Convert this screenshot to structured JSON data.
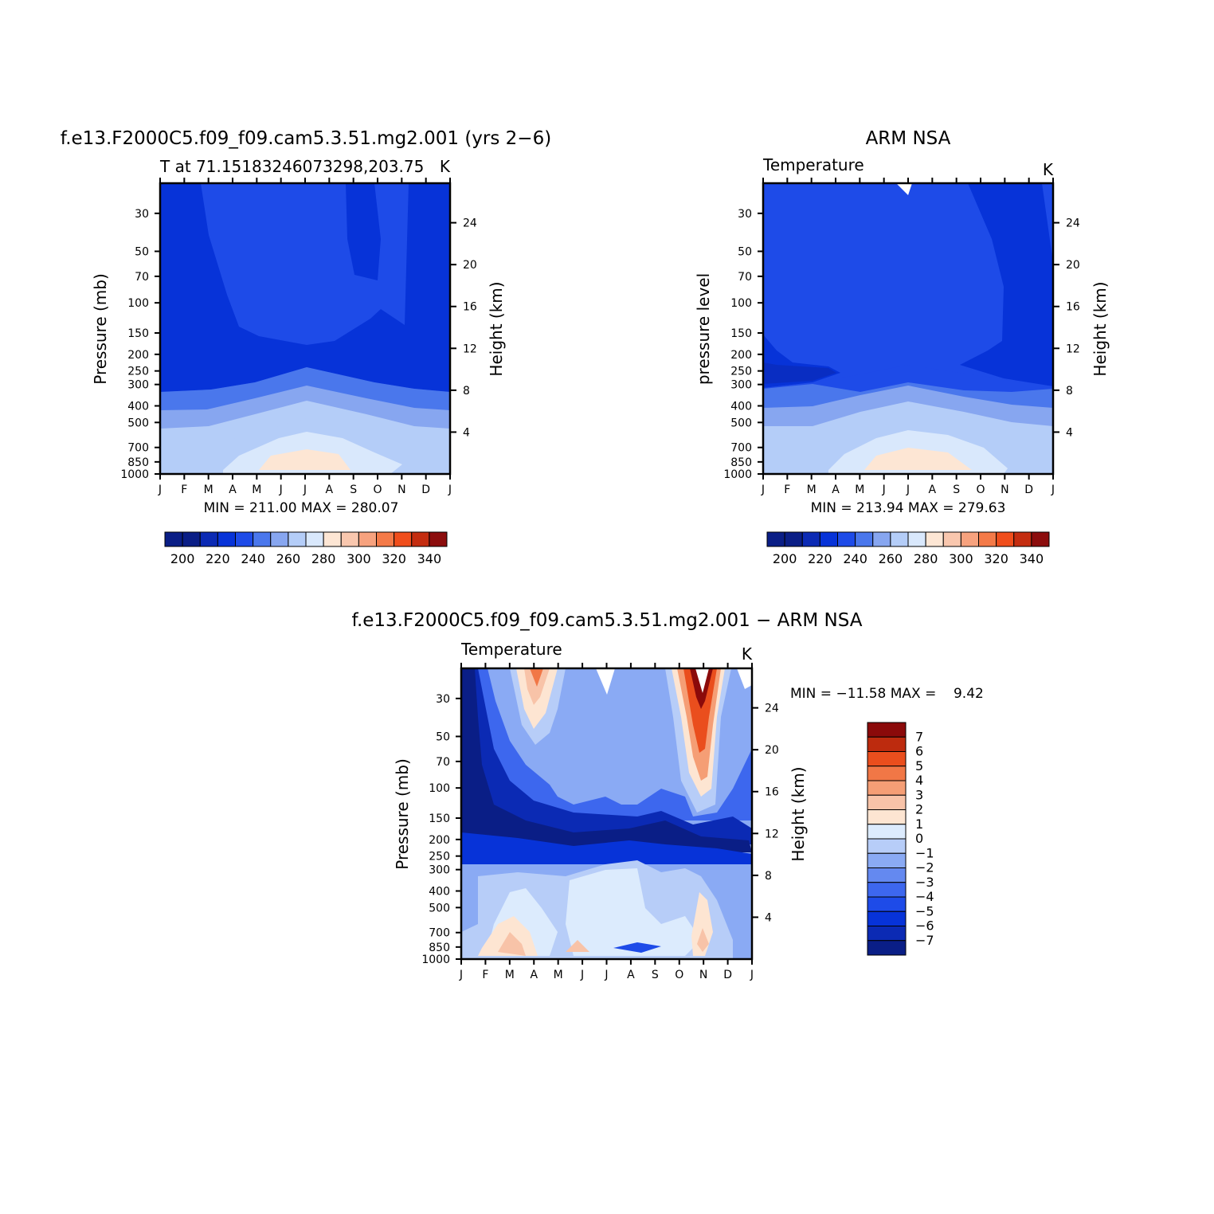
{
  "palette": {
    "temperature": [
      "#0a1e86",
      "#0b2ab4",
      "#0733d8",
      "#1e4be8",
      "#4a77ec",
      "#87a6f0",
      "#b4cdf8",
      "#d9e8fc",
      "#fde6d4",
      "#f9c7ae",
      "#f7a27e",
      "#f47a48",
      "#f04e1c",
      "#c42d10",
      "#8c0d0d"
    ],
    "difference": [
      "#0a1e86",
      "#0b2ab4",
      "#0733d8",
      "#1e4be8",
      "#3d67ee",
      "#6489f0",
      "#8aaaf4",
      "#b7cdf8",
      "#dcebfd",
      "#fde5d2",
      "#f8c3a8",
      "#f59e75",
      "#f17746",
      "#ea4e1d",
      "#bd2b0e",
      "#8b0a0a"
    ]
  },
  "chart_data": [
    {
      "type": "heatmap",
      "title": "f.e13.F2000C5.f09_f09.cam5.3.51.mg2.001 (yrs 2−6)",
      "subtitle_left": "T at 71.15183246073298,203.75",
      "subtitle_right": "K",
      "ylabel": "Pressure (mb)",
      "ylabel_right": "Height (km)",
      "x_ticks": [
        "J",
        "F",
        "M",
        "A",
        "M",
        "J",
        "J",
        "A",
        "S",
        "O",
        "N",
        "D",
        "J"
      ],
      "y_ticks": [
        "30",
        "50",
        "70",
        "100",
        "150",
        "200",
        "250",
        "300",
        "400",
        "500",
        "700",
        "850",
        "1000"
      ],
      "y_ticks_right": [
        "24",
        "20",
        "16",
        "12",
        "8",
        "4"
      ],
      "minmax": "MIN = 211.00 MAX = 280.07",
      "min": 211.0,
      "max": 280.07,
      "colorbar_labels": [
        "200",
        "220",
        "240",
        "260",
        "280",
        "300",
        "320",
        "340"
      ],
      "levels": [
        190,
        200,
        210,
        220,
        230,
        240,
        250,
        260,
        270,
        280,
        290,
        300,
        310,
        320,
        330,
        340
      ]
    },
    {
      "type": "heatmap",
      "title": "ARM NSA",
      "subtitle_left": "Temperature",
      "subtitle_right": "K",
      "ylabel": "pressure level",
      "ylabel_right": "Height (km)",
      "x_ticks": [
        "J",
        "F",
        "M",
        "A",
        "M",
        "J",
        "J",
        "A",
        "S",
        "O",
        "N",
        "D",
        "J"
      ],
      "y_ticks": [
        "30",
        "50",
        "70",
        "100",
        "150",
        "200",
        "250",
        "300",
        "400",
        "500",
        "700",
        "850",
        "1000"
      ],
      "y_ticks_right": [
        "24",
        "20",
        "16",
        "12",
        "8",
        "4"
      ],
      "minmax": "MIN = 213.94 MAX = 279.63",
      "min": 213.94,
      "max": 279.63,
      "colorbar_labels": [
        "200",
        "220",
        "240",
        "260",
        "280",
        "300",
        "320",
        "340"
      ],
      "levels": [
        190,
        200,
        210,
        220,
        230,
        240,
        250,
        260,
        270,
        280,
        290,
        300,
        310,
        320,
        330,
        340
      ]
    },
    {
      "type": "heatmap",
      "title": "f.e13.F2000C5.f09_f09.cam5.3.51.mg2.001 − ARM NSA",
      "subtitle_left": "Temperature",
      "subtitle_right": "K",
      "ylabel": "Pressure (mb)",
      "ylabel_right": "Height (km)",
      "x_ticks": [
        "J",
        "F",
        "M",
        "A",
        "M",
        "J",
        "J",
        "A",
        "S",
        "O",
        "N",
        "D",
        "J"
      ],
      "y_ticks": [
        "30",
        "50",
        "70",
        "100",
        "150",
        "200",
        "250",
        "300",
        "400",
        "500",
        "700",
        "850",
        "1000"
      ],
      "y_ticks_right": [
        "24",
        "20",
        "16",
        "12",
        "8",
        "4"
      ],
      "minmax": "MIN = −11.58 MAX =    9.42",
      "min": -11.58,
      "max": 9.42,
      "colorbar_labels": [
        "7",
        "6",
        "5",
        "4",
        "3",
        "2",
        "1",
        "0",
        "−1",
        "−2",
        "−3",
        "−4",
        "−5",
        "−6",
        "−7"
      ],
      "levels": [
        -8,
        -7,
        -6,
        -5,
        -4,
        -3,
        -2,
        -1,
        0,
        1,
        2,
        3,
        4,
        5,
        6,
        7,
        8
      ]
    }
  ]
}
